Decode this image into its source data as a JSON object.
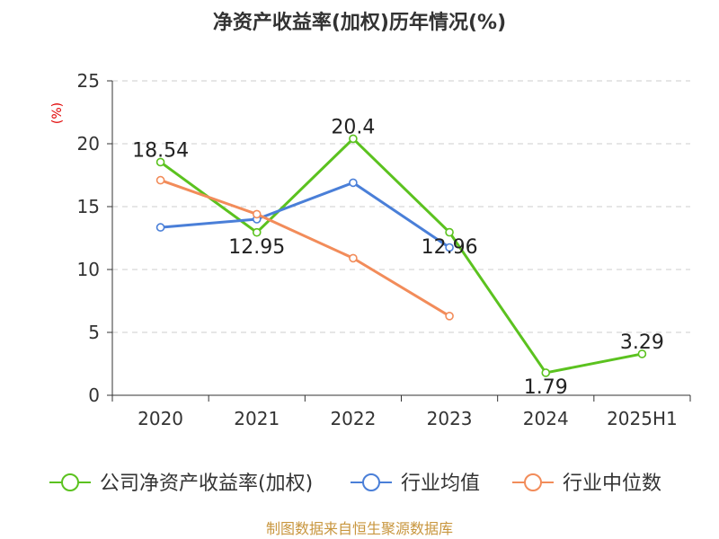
{
  "chart_data": {
    "type": "line",
    "title": "净资产收益率(加权)历年情况(%)",
    "unit_label": "(%)",
    "categories": [
      "2020",
      "2021",
      "2022",
      "2023",
      "2024",
      "2025H1"
    ],
    "ylim": [
      0,
      25
    ],
    "yticks": [
      0,
      5,
      10,
      15,
      20,
      25
    ],
    "grid": true,
    "legend_position": "bottom",
    "series": [
      {
        "name": "公司净资产收益率(加权)",
        "color": "#5bc21f",
        "values": [
          18.54,
          12.95,
          20.4,
          12.96,
          1.79,
          3.29
        ],
        "labels": [
          "18.54",
          "12.95",
          "20.4",
          "12.96",
          "1.79",
          "3.29"
        ]
      },
      {
        "name": "行业均值",
        "color": "#4a7fd8",
        "values": [
          13.35,
          14.0,
          16.9,
          11.75,
          null,
          null
        ]
      },
      {
        "name": "行业中位数",
        "color": "#f28c5a",
        "values": [
          17.1,
          14.4,
          10.9,
          6.3,
          null,
          null
        ]
      }
    ]
  },
  "source": "制图数据来自恒生聚源数据库"
}
